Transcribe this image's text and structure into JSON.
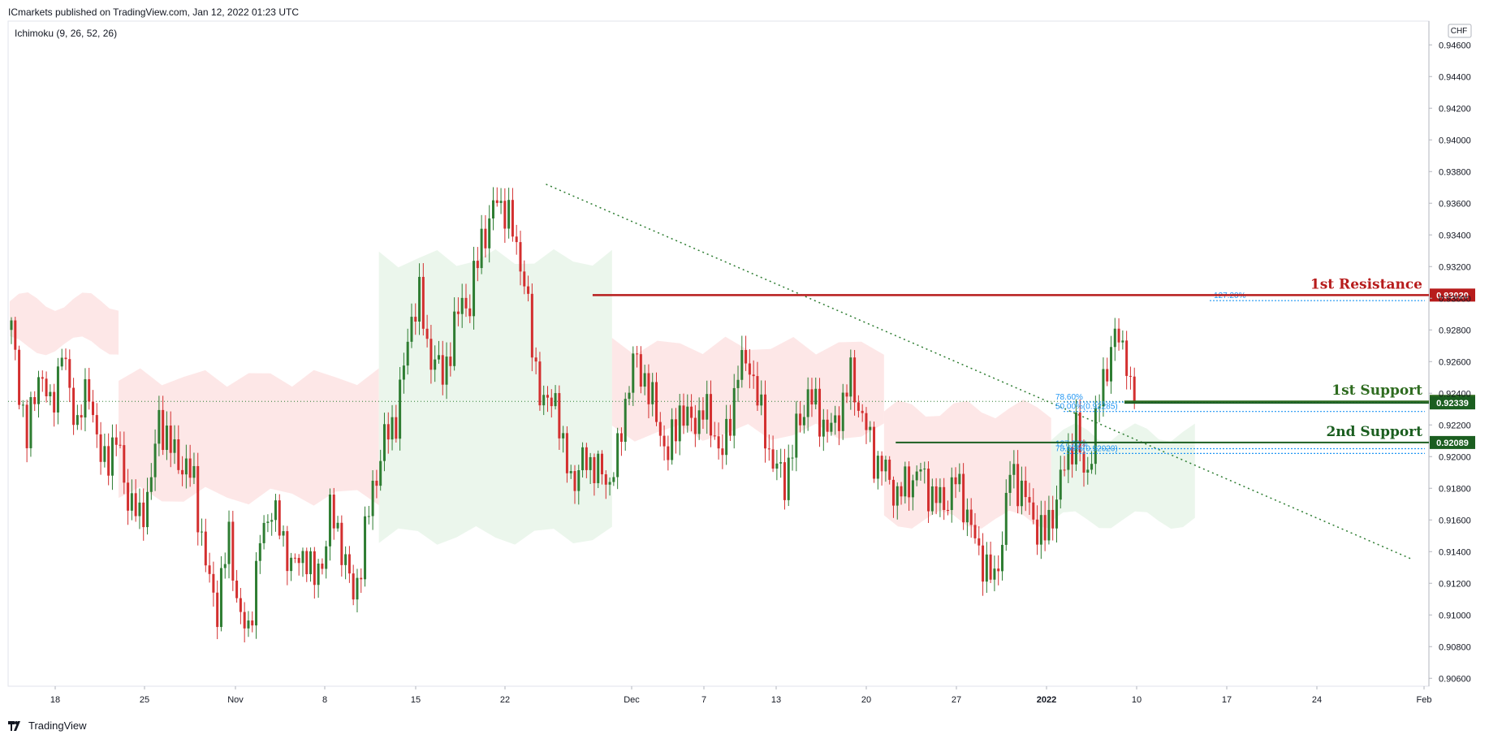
{
  "header": {
    "published_by": "ICmarkets published on TradingView.com, Jan 12, 2022 01:23 UTC",
    "indicator": "Ichimoku (9, 26, 52, 26)"
  },
  "footer": {
    "brand": "TradingView"
  },
  "colors": {
    "up": "#2e7d32",
    "down": "#d32f2f",
    "resistance": "#b71c1c",
    "support": "#2e6b1f",
    "support_dark": "#1b5e20",
    "fib": "#2196f3",
    "trend": "#2e7d32",
    "cloud_bull": "#e8f5e9",
    "cloud_bear": "#fde3e3"
  },
  "chart_data": {
    "type": "candlestick",
    "currency": "CHF",
    "ylim": [
      0.9055,
      0.9475
    ],
    "y_ticks": [
      "0.94600",
      "0.94400",
      "0.94200",
      "0.94000",
      "0.93800",
      "0.93600",
      "0.93400",
      "0.93200",
      "0.93000",
      "0.92800",
      "0.92600",
      "0.92400",
      "0.92200",
      "0.92000",
      "0.91800",
      "0.91600",
      "0.91400",
      "0.91200",
      "0.91000",
      "0.90800",
      "0.90600"
    ],
    "x_ticks": [
      "18",
      "25",
      "Nov",
      "8",
      "15",
      "22",
      "Dec",
      "7",
      "13",
      "20",
      "27",
      "2022",
      "10",
      "17",
      "24",
      "Feb"
    ],
    "levels": [
      {
        "name": "1st Resistance",
        "price": 0.9302,
        "label": "0.93020",
        "kind": "resistance"
      },
      {
        "name": "1st Support",
        "price": 0.92349,
        "label": "0.92349",
        "kind": "support"
      },
      {
        "name": "",
        "price": 0.92339,
        "label": "0.92339",
        "kind": "support_dark"
      },
      {
        "name": "2nd Support",
        "price": 0.92089,
        "label": "0.92089",
        "kind": "support_dark"
      }
    ],
    "fib_labels": [
      {
        "text": "127.20%",
        "price": 0.92985
      },
      {
        "text": "78.60%",
        "price": 0.92345
      },
      {
        "text": "50.00%(0.92285)",
        "price": 0.92285
      },
      {
        "text": "127.20%",
        "price": 0.9205
      },
      {
        "text": "78.60%(0.92020)",
        "price": 0.9202
      }
    ],
    "current_price": 0.92349,
    "series_path": [
      [
        0.928,
        0
      ],
      [
        0.921,
        4
      ],
      [
        0.9255,
        7
      ],
      [
        0.923,
        10
      ],
      [
        0.9265,
        13
      ],
      [
        0.922,
        17
      ],
      [
        0.9245,
        20
      ],
      [
        0.9195,
        23
      ],
      [
        0.921,
        27
      ],
      [
        0.9175,
        30
      ],
      [
        0.916,
        33
      ],
      [
        0.9185,
        36
      ],
      [
        0.9225,
        38
      ],
      [
        0.9205,
        41
      ],
      [
        0.9195,
        44
      ],
      [
        0.9185,
        47
      ],
      [
        0.913,
        50
      ],
      [
        0.9105,
        53
      ],
      [
        0.915,
        56
      ],
      [
        0.9095,
        59
      ],
      [
        0.909,
        61
      ],
      [
        0.9145,
        64
      ],
      [
        0.917,
        67
      ],
      [
        0.9145,
        70
      ],
      [
        0.913,
        73
      ],
      [
        0.914,
        76
      ],
      [
        0.912,
        78
      ],
      [
        0.9135,
        80
      ],
      [
        0.9165,
        82
      ],
      [
        0.9145,
        85
      ],
      [
        0.911,
        88
      ],
      [
        0.9135,
        90
      ],
      [
        0.918,
        93
      ],
      [
        0.921,
        96
      ],
      [
        0.9225,
        99
      ],
      [
        0.9255,
        101
      ],
      [
        0.929,
        103
      ],
      [
        0.93,
        105
      ],
      [
        0.927,
        107
      ],
      [
        0.926,
        109
      ],
      [
        0.925,
        111
      ],
      [
        0.927,
        113
      ],
      [
        0.93,
        116
      ],
      [
        0.9295,
        118
      ],
      [
        0.934,
        121
      ],
      [
        0.9345,
        123
      ],
      [
        0.9365,
        125
      ],
      [
        0.9355,
        127
      ],
      [
        0.9335,
        130
      ],
      [
        0.931,
        132
      ],
      [
        0.927,
        134
      ],
      [
        0.923,
        137
      ],
      [
        0.924,
        140
      ],
      [
        0.92,
        142
      ],
      [
        0.9185,
        145
      ],
      [
        0.92,
        148
      ],
      [
        0.919,
        151
      ],
      [
        0.9185,
        154
      ],
      [
        0.92,
        156
      ],
      [
        0.9235,
        158
      ],
      [
        0.926,
        160
      ],
      [
        0.925,
        163
      ],
      [
        0.9225,
        166
      ],
      [
        0.92,
        169
      ],
      [
        0.923,
        172
      ],
      [
        0.922,
        175
      ],
      [
        0.923,
        178
      ],
      [
        0.9215,
        181
      ],
      [
        0.92,
        183
      ],
      [
        0.9225,
        185
      ],
      [
        0.9255,
        187
      ],
      [
        0.926,
        190
      ],
      [
        0.9225,
        193
      ],
      [
        0.9195,
        196
      ],
      [
        0.9185,
        199
      ],
      [
        0.9215,
        202
      ],
      [
        0.924,
        205
      ],
      [
        0.9225,
        208
      ],
      [
        0.9215,
        211
      ],
      [
        0.9235,
        214
      ],
      [
        0.925,
        216
      ],
      [
        0.9225,
        219
      ],
      [
        0.92,
        222
      ],
      [
        0.919,
        225
      ],
      [
        0.9175,
        228
      ],
      [
        0.9185,
        231
      ],
      [
        0.919,
        234
      ],
      [
        0.9175,
        237
      ],
      [
        0.917,
        240
      ],
      [
        0.9185,
        243
      ],
      [
        0.9165,
        246
      ],
      [
        0.9145,
        248
      ],
      [
        0.913,
        251
      ],
      [
        0.912,
        253
      ],
      [
        0.915,
        255
      ],
      [
        0.919,
        257
      ],
      [
        0.918,
        260
      ],
      [
        0.916,
        263
      ],
      [
        0.915,
        266
      ],
      [
        0.9165,
        268
      ],
      [
        0.9185,
        270
      ],
      [
        0.92,
        272
      ],
      [
        0.922,
        274
      ],
      [
        0.9185,
        276
      ],
      [
        0.9205,
        278
      ],
      [
        0.9235,
        280
      ],
      [
        0.926,
        282
      ],
      [
        0.9275,
        284
      ],
      [
        0.927,
        286
      ],
      [
        0.9265,
        287
      ],
      [
        0.924,
        288
      ],
      [
        0.9235,
        289
      ]
    ]
  }
}
